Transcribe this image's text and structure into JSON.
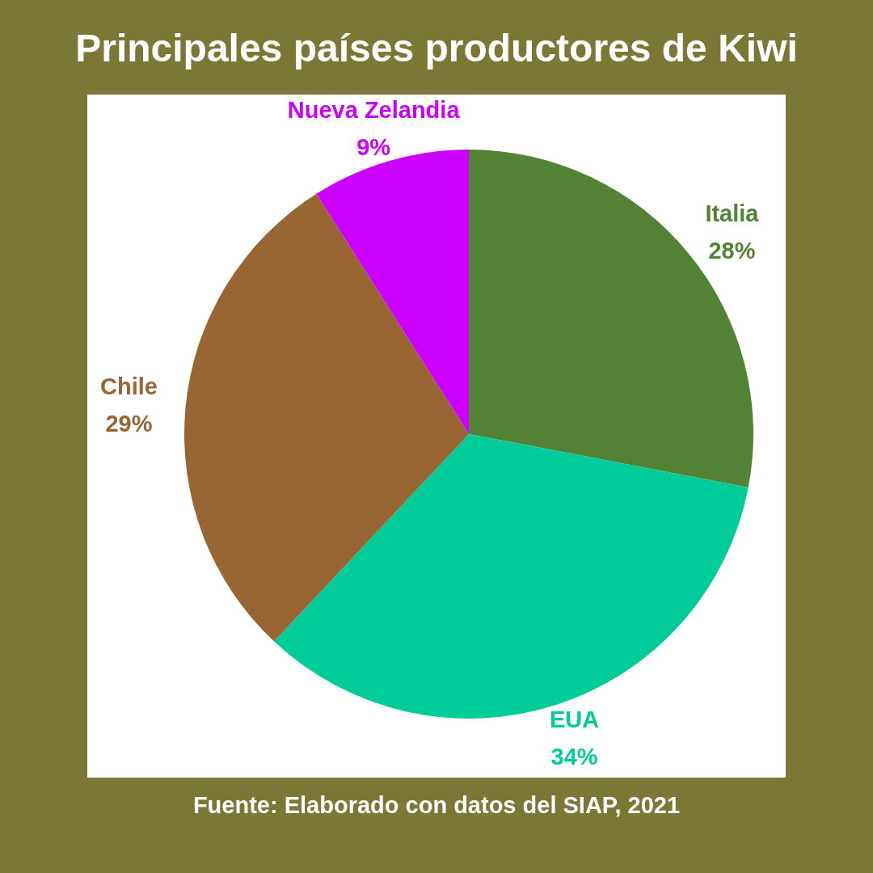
{
  "chart_data": {
    "type": "pie",
    "title": "Principales países productores de Kiwi",
    "categories": [
      "Italia",
      "EUA",
      "Chile",
      "Nueva Zelandia"
    ],
    "values": [
      28,
      34,
      29,
      9
    ],
    "value_labels": [
      "28%",
      "34%",
      "29%",
      "9%"
    ],
    "colors": [
      "#548235",
      "#00cc99",
      "#996633",
      "#cc00ff"
    ],
    "annotations": [
      "Fuente: Elaborado con datos del SIAP, 2021"
    ]
  }
}
